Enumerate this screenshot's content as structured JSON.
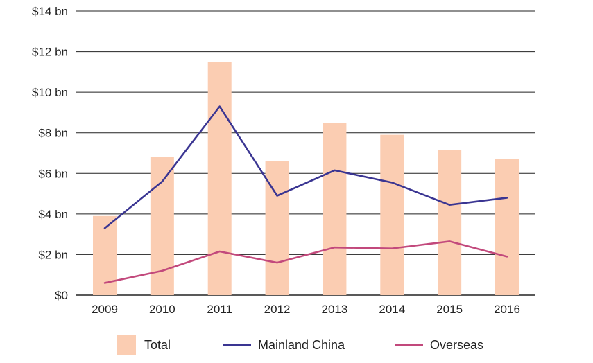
{
  "chart_data": {
    "type": "bar",
    "categories": [
      "2009",
      "2010",
      "2011",
      "2012",
      "2013",
      "2014",
      "2015",
      "2016"
    ],
    "y_ticks": [
      "$0",
      "$2 bn",
      "$4 bn",
      "$6 bn",
      "$8 bn",
      "$10 bn",
      "$12 bn",
      "$14 bn"
    ],
    "ylim": [
      0,
      14
    ],
    "grid": true,
    "legend_position": "bottom",
    "series": [
      {
        "name": "Total",
        "kind": "bar",
        "color": "#fbcdb2",
        "values": [
          3.9,
          6.8,
          11.5,
          6.6,
          8.5,
          7.9,
          7.15,
          6.7
        ]
      },
      {
        "name": "Mainland China",
        "kind": "line",
        "color": "#3a3592",
        "values": [
          3.3,
          5.6,
          9.3,
          4.9,
          6.15,
          5.55,
          4.45,
          4.8
        ]
      },
      {
        "name": "Overseas",
        "kind": "line",
        "color": "#c2497c",
        "values": [
          0.6,
          1.2,
          2.15,
          1.6,
          2.35,
          2.3,
          2.65,
          1.9
        ]
      }
    ]
  }
}
